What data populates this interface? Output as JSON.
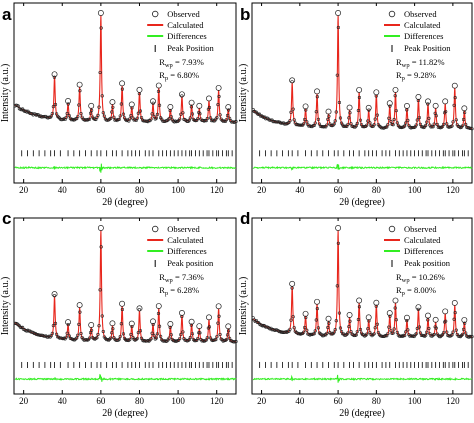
{
  "figure": {
    "colors": {
      "observed": "#222222",
      "calculated": "#e8261c",
      "difference": "#33ee22",
      "peak": "#000000"
    },
    "legend": {
      "observed": "Observed",
      "calculated": "Calculated",
      "differences": "Differences"
    }
  },
  "chart_data": [
    {
      "type": "line",
      "panel": "a",
      "xlabel": "2θ (degree)",
      "ylabel": "Intensity (a.u.)",
      "xlim": [
        15,
        130
      ],
      "xticks": [
        20,
        40,
        60,
        80,
        100,
        120
      ],
      "yticks": [],
      "background": {
        "start": 0.37,
        "end": 0.2,
        "decay": 12
      },
      "peaks": [
        [
          36,
          0.4
        ],
        [
          43,
          0.16
        ],
        [
          49,
          0.32
        ],
        [
          55,
          0.12
        ],
        [
          60,
          1.0
        ],
        [
          66,
          0.16
        ],
        [
          71,
          0.34
        ],
        [
          76,
          0.14
        ],
        [
          80,
          0.28
        ],
        [
          87,
          0.17
        ],
        [
          90,
          0.32
        ],
        [
          96,
          0.12
        ],
        [
          102,
          0.24
        ],
        [
          107,
          0.16
        ],
        [
          111,
          0.13
        ],
        [
          116,
          0.2
        ],
        [
          121,
          0.3
        ],
        [
          126,
          0.12
        ]
      ],
      "tick_positions": [
        19,
        22,
        25,
        28,
        31,
        34,
        36,
        39,
        43,
        46,
        49,
        52,
        55,
        58,
        60,
        63,
        66,
        68,
        71,
        74,
        76,
        78,
        80,
        83,
        85,
        87,
        90,
        92,
        94,
        96,
        98,
        100,
        102,
        104,
        106,
        107,
        109,
        111,
        113,
        115,
        116,
        118,
        120,
        121,
        123,
        125,
        126,
        128
      ],
      "series_labels": {
        "observed": "Observed",
        "calculated": "Calculated",
        "differences": "Differences",
        "peak": "Peak Position"
      },
      "stats": {
        "rwp_label": "R",
        "rwp_sub": "wp",
        "rwp_value": " = 7.93%",
        "rp_label": "R",
        "rp_sub": "p",
        "rp_value": " = 6.80%"
      }
    },
    {
      "type": "line",
      "panel": "b",
      "xlabel": "2θ (degree)",
      "ylabel": "Intensity (a.u.)",
      "xlim": [
        15,
        130
      ],
      "xticks": [
        20,
        40,
        60,
        80,
        100,
        120
      ],
      "yticks": [],
      "background": {
        "start": 0.3,
        "end": 0.13,
        "decay": 12
      },
      "peaks": [
        [
          36,
          0.38
        ],
        [
          43,
          0.16
        ],
        [
          49,
          0.3
        ],
        [
          55,
          0.12
        ],
        [
          60,
          1.0
        ],
        [
          66,
          0.16
        ],
        [
          71,
          0.32
        ],
        [
          76,
          0.16
        ],
        [
          80,
          0.3
        ],
        [
          87,
          0.2
        ],
        [
          90,
          0.32
        ],
        [
          96,
          0.18
        ],
        [
          102,
          0.26
        ],
        [
          107,
          0.22
        ],
        [
          111,
          0.18
        ],
        [
          116,
          0.22
        ],
        [
          121,
          0.36
        ],
        [
          126,
          0.16
        ]
      ],
      "tick_positions": [
        19,
        22,
        25,
        28,
        31,
        34,
        36,
        39,
        43,
        46,
        49,
        52,
        55,
        58,
        60,
        63,
        66,
        68,
        71,
        74,
        76,
        78,
        80,
        83,
        85,
        87,
        90,
        92,
        94,
        96,
        98,
        100,
        102,
        104,
        106,
        107,
        109,
        111,
        113,
        115,
        116,
        118,
        120,
        121,
        123,
        125,
        126,
        128
      ],
      "series_labels": {
        "observed": "Observed",
        "calculated": "Calculated",
        "differences": "Differences",
        "peak": "Peak Position"
      },
      "stats": {
        "rwp_label": "R",
        "rwp_sub": "wp",
        "rwp_value": " = 11.82%",
        "rp_label": "R",
        "rp_sub": "p",
        "rp_value": " = 9.28%"
      }
    },
    {
      "type": "line",
      "panel": "c",
      "xlabel": "2θ (degree)",
      "ylabel": "Intensity (a.u.)",
      "xlim": [
        15,
        130
      ],
      "xticks": [
        20,
        40,
        60,
        80,
        100,
        120
      ],
      "yticks": [],
      "background": {
        "start": 0.3,
        "end": 0.12,
        "decay": 12
      },
      "peaks": [
        [
          36,
          0.38
        ],
        [
          43,
          0.14
        ],
        [
          49,
          0.3
        ],
        [
          55,
          0.12
        ],
        [
          60,
          1.0
        ],
        [
          66,
          0.14
        ],
        [
          71,
          0.32
        ],
        [
          76,
          0.14
        ],
        [
          80,
          0.28
        ],
        [
          87,
          0.16
        ],
        [
          90,
          0.3
        ],
        [
          96,
          0.14
        ],
        [
          102,
          0.24
        ],
        [
          107,
          0.16
        ],
        [
          111,
          0.12
        ],
        [
          116,
          0.2
        ],
        [
          121,
          0.3
        ],
        [
          126,
          0.12
        ]
      ],
      "tick_positions": [
        19,
        22,
        25,
        28,
        31,
        34,
        36,
        39,
        43,
        46,
        49,
        52,
        55,
        58,
        60,
        63,
        66,
        68,
        71,
        74,
        76,
        78,
        80,
        83,
        85,
        87,
        90,
        92,
        94,
        96,
        98,
        100,
        102,
        104,
        106,
        107,
        109,
        111,
        113,
        115,
        116,
        118,
        120,
        121,
        123,
        125,
        126,
        128
      ],
      "series_labels": {
        "observed": "Observed",
        "calculated": "Calculated",
        "differences": "Differences",
        "peak": "Peak position"
      },
      "stats": {
        "rwp_label": "R",
        "rwp_sub": "wp",
        "rwp_value": " = 7.36%",
        "rp_label": "R",
        "rp_sub": "p",
        "rp_value": " = 6.28%"
      }
    },
    {
      "type": "line",
      "panel": "d",
      "xlabel": "2θ (degree)",
      "ylabel": "Intensity (a.u.)",
      "xlim": [
        15,
        130
      ],
      "xticks": [
        20,
        40,
        60,
        80,
        100,
        120
      ],
      "yticks": [],
      "background": {
        "start": 0.35,
        "end": 0.17,
        "decay": 12
      },
      "peaks": [
        [
          36,
          0.45
        ],
        [
          43,
          0.18
        ],
        [
          49,
          0.3
        ],
        [
          55,
          0.14
        ],
        [
          60,
          1.0
        ],
        [
          66,
          0.18
        ],
        [
          71,
          0.32
        ],
        [
          76,
          0.16
        ],
        [
          80,
          0.3
        ],
        [
          87,
          0.2
        ],
        [
          90,
          0.32
        ],
        [
          96,
          0.16
        ],
        [
          102,
          0.26
        ],
        [
          107,
          0.18
        ],
        [
          111,
          0.14
        ],
        [
          116,
          0.22
        ],
        [
          121,
          0.3
        ],
        [
          126,
          0.14
        ]
      ],
      "tick_positions": [
        19,
        22,
        25,
        28,
        31,
        34,
        36,
        39,
        43,
        46,
        49,
        52,
        55,
        58,
        60,
        63,
        66,
        68,
        71,
        74,
        76,
        78,
        80,
        83,
        85,
        87,
        90,
        92,
        94,
        96,
        98,
        100,
        102,
        104,
        106,
        107,
        109,
        111,
        113,
        115,
        116,
        118,
        120,
        121,
        123,
        125,
        126,
        128
      ],
      "series_labels": {
        "observed": "Observed",
        "calculated": "Calculated",
        "differences": "Differences",
        "peak": "Peak position"
      },
      "stats": {
        "rwp_label": "R",
        "rwp_sub": "wp",
        "rwp_value": " = 10.26%",
        "rp_label": "R",
        "rp_sub": "p",
        "rp_value": " = 8.00%"
      }
    }
  ]
}
